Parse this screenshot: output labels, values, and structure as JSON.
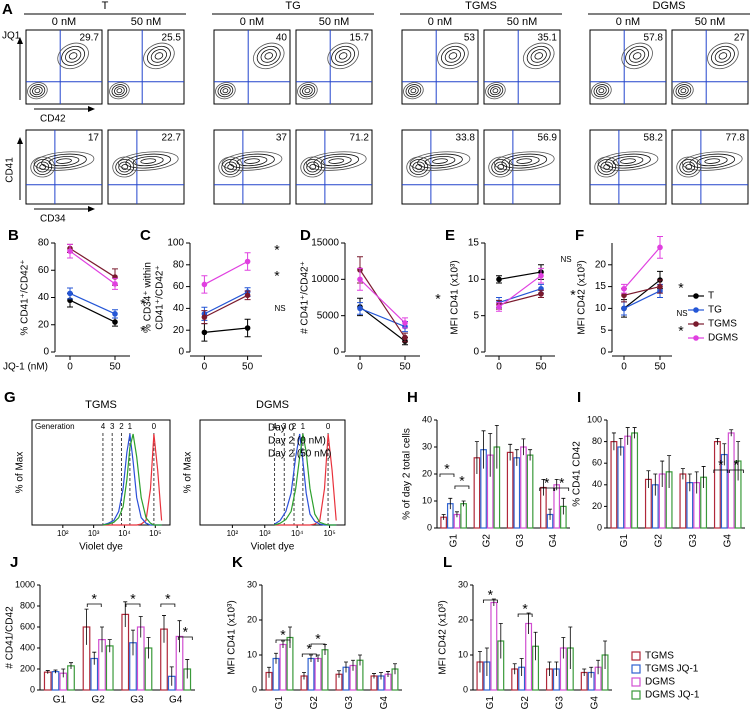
{
  "chart_data": [
    {
      "type": "contour",
      "panel": "A",
      "groups": [
        "T",
        "TG",
        "TGMS",
        "DGMS"
      ],
      "conditions": [
        "0 nM",
        "50 nM"
      ],
      "corner_label": "JQ1",
      "y_label": "CD41",
      "color": "#2244cc",
      "rows": [
        {
          "x_label": "CD42",
          "values": [
            29.7,
            25.5,
            40,
            15.7,
            53,
            35.1,
            57.8,
            27
          ]
        },
        {
          "x_label": "CD34",
          "values": [
            17,
            22.7,
            37,
            71.2,
            33.8,
            56.9,
            58.2,
            77.8
          ]
        }
      ]
    },
    {
      "type": "line",
      "xlabel": "JQ-1 (nM)",
      "categories": [
        "0",
        "50"
      ],
      "series": [
        {
          "name": "T",
          "color": "#000000"
        },
        {
          "name": "TG",
          "color": "#2456d6"
        },
        {
          "name": "TGMS",
          "color": "#7a1a2e"
        },
        {
          "name": "DGMS",
          "color": "#e040e0"
        }
      ],
      "plots": [
        {
          "panel": "B",
          "ylabel": [
            "% CD41⁺/CD42⁺"
          ],
          "ylim": [
            0,
            80
          ],
          "yticks": [
            0,
            20,
            40,
            60,
            80
          ],
          "values": [
            [
              38,
              22
            ],
            [
              43,
              28
            ],
            [
              76,
              55
            ],
            [
              74,
              50
            ]
          ],
          "errors": [
            [
              5,
              3
            ],
            [
              4,
              3
            ],
            [
              3,
              6
            ],
            [
              5,
              4
            ]
          ],
          "annotations": [
            "*",
            "*"
          ]
        },
        {
          "panel": "C",
          "ylabel": [
            "% CD34⁺ within",
            "CD41⁺/CD42⁺"
          ],
          "ylim": [
            0,
            100
          ],
          "yticks": [
            0,
            20,
            40,
            60,
            80,
            100
          ],
          "values": [
            [
              18,
              22
            ],
            [
              35,
              55
            ],
            [
              32,
              52
            ],
            [
              62,
              83
            ]
          ],
          "errors": [
            [
              8,
              8
            ],
            [
              6,
              4
            ],
            [
              6,
              4
            ],
            [
              8,
              8
            ]
          ],
          "annotations": [
            "*",
            "*",
            "NS"
          ]
        },
        {
          "panel": "D",
          "ylabel": [
            "# CD41⁺/CD42⁺"
          ],
          "ylim": [
            0,
            15000
          ],
          "yticks": [
            0,
            5000,
            10000,
            15000
          ],
          "values": [
            [
              6200,
              1500
            ],
            [
              6000,
              3500
            ],
            [
              11300,
              2000
            ],
            [
              10000,
              4000
            ]
          ],
          "errors": [
            [
              1200,
              500
            ],
            [
              800,
              700
            ],
            [
              1800,
              600
            ],
            [
              1500,
              700
            ]
          ],
          "annotations": [
            "*"
          ]
        },
        {
          "panel": "E",
          "ylabel": [
            "MFI CD41 (x10³)"
          ],
          "ylim": [
            0,
            15
          ],
          "yticks": [
            0,
            5,
            10,
            15
          ],
          "values": [
            [
              10,
              11
            ],
            [
              6.8,
              8.7
            ],
            [
              6.5,
              8
            ],
            [
              6.2,
              10.5
            ]
          ],
          "errors": [
            [
              0.5,
              1
            ],
            [
              0.7,
              0.6
            ],
            [
              0.6,
              0.5
            ],
            [
              0.6,
              1
            ]
          ],
          "annotations": [
            "NS",
            "*"
          ]
        },
        {
          "panel": "F",
          "ylabel": [
            "MFI CD42 (x10³)"
          ],
          "ylim": [
            0,
            25
          ],
          "yticks": [
            0,
            5,
            10,
            15,
            20
          ],
          "values": [
            [
              10,
              16.5
            ],
            [
              10,
              14
            ],
            [
              13,
              15
            ],
            [
              14.5,
              24
            ]
          ],
          "errors": [
            [
              2,
              2
            ],
            [
              1.5,
              1.5
            ],
            [
              1.5,
              1.5
            ],
            [
              1,
              2.5
            ]
          ],
          "annotations": [
            "*",
            "NS",
            "*"
          ]
        }
      ]
    },
    {
      "type": "density",
      "panel": "G",
      "titles": [
        "TGMS",
        "DGMS"
      ],
      "ylabel": "% of Max",
      "xlabel": "Violet dye",
      "log_x": true,
      "generation_label": "Generation",
      "generations": [
        "4",
        "3",
        "2",
        "1",
        "0"
      ],
      "generation_x": [
        2000,
        4000,
        8000,
        15000,
        90000
      ],
      "xlim": [
        10,
        300000
      ],
      "xticks": [
        {
          "value": 100,
          "label": "10²"
        },
        {
          "value": 1000,
          "label": "10³"
        },
        {
          "value": 10000,
          "label": "10⁴"
        },
        {
          "value": 100000,
          "label": "10⁵"
        }
      ],
      "ylim": [
        0,
        100
      ],
      "x": [
        2000,
        3000,
        4500,
        6500,
        9000,
        12000,
        15000,
        19000,
        25000,
        35000,
        50000,
        70000,
        90000,
        120000,
        160000
      ],
      "series": [
        {
          "name": "Day 0",
          "color": "#e8323c",
          "values": [
            [
              0,
              0,
              0,
              0,
              0,
              0,
              0,
              0,
              0,
              1,
              5,
              40,
              100,
              60,
              5
            ],
            [
              0,
              0,
              0,
              0,
              0,
              0,
              0,
              0,
              0,
              1,
              5,
              40,
              100,
              60,
              5
            ]
          ]
        },
        {
          "name": "Day 2 (0 nM)",
          "color": "#2b4fd8",
          "values": [
            [
              0,
              2,
              5,
              15,
              40,
              80,
              100,
              70,
              30,
              8,
              2,
              0,
              0,
              0,
              0
            ],
            [
              1,
              5,
              15,
              35,
              75,
              100,
              70,
              35,
              12,
              4,
              1,
              0,
              0,
              0,
              0
            ]
          ]
        },
        {
          "name": "Day 2 (50 nM)",
          "color": "#2ca02c",
          "values": [
            [
              0,
              1,
              3,
              8,
              20,
              50,
              85,
              100,
              75,
              30,
              8,
              2,
              0,
              0,
              0
            ],
            [
              0,
              2,
              6,
              15,
              40,
              75,
              100,
              80,
              40,
              12,
              3,
              1,
              0,
              0,
              0
            ]
          ]
        }
      ]
    },
    {
      "type": "bar",
      "categories": [
        "G1",
        "G2",
        "G3",
        "G4"
      ],
      "series": [
        {
          "name": "TGMS",
          "color": "#b0283a"
        },
        {
          "name": "TGMS JQ-1",
          "color": "#2f62d0"
        },
        {
          "name": "DGMS",
          "color": "#d14fd1"
        },
        {
          "name": "DGMS JQ-1",
          "color": "#3a9a3a"
        }
      ],
      "plots": [
        {
          "panel": "H",
          "ylabel": [
            "% of day 2 total cells"
          ],
          "ylim": [
            0,
            40
          ],
          "yticks": [
            0,
            10,
            20,
            30,
            40
          ],
          "values": [
            [
              4,
              26,
              28,
              15
            ],
            [
              9,
              29,
              26,
              5
            ],
            [
              5,
              27,
              30,
              16
            ],
            [
              9,
              30,
              27,
              8
            ]
          ],
          "errors": [
            [
              1,
              6,
              3,
              3
            ],
            [
              2,
              7,
              3,
              2
            ],
            [
              1,
              8,
              3,
              2
            ],
            [
              1,
              8,
              2,
              3
            ]
          ],
          "annotations": [
            "*",
            "*",
            "*",
            "*"
          ]
        },
        {
          "panel": "I",
          "ylabel": [
            "% CD41 CD42"
          ],
          "ylim": [
            0,
            100
          ],
          "yticks": [
            0,
            20,
            40,
            60,
            80,
            100
          ],
          "values": [
            [
              80,
              45,
              50,
              80
            ],
            [
              75,
              40,
              42,
              68
            ],
            [
              85,
              50,
              42,
              88
            ],
            [
              88,
              52,
              47,
              62
            ]
          ],
          "errors": [
            [
              8,
              8,
              5,
              3
            ],
            [
              8,
              10,
              8,
              10
            ],
            [
              8,
              12,
              10,
              3
            ],
            [
              5,
              15,
              10,
              18
            ]
          ],
          "annotations": [
            "*",
            "*"
          ]
        },
        {
          "panel": "J",
          "ylabel": [
            "# CD41/CD42"
          ],
          "ylim": [
            0,
            1000
          ],
          "yticks": [
            0,
            200,
            400,
            600,
            800,
            1000
          ],
          "values": [
            [
              170,
              600,
              720,
              580
            ],
            [
              175,
              300,
              450,
              130
            ],
            [
              160,
              480,
              600,
              510
            ],
            [
              230,
              420,
              400,
              200
            ]
          ],
          "errors": [
            [
              15,
              170,
              120,
              130
            ],
            [
              15,
              60,
              120,
              90
            ],
            [
              40,
              120,
              100,
              150
            ],
            [
              30,
              60,
              100,
              90
            ]
          ],
          "annotations": [
            "*",
            "*",
            "*",
            "*"
          ]
        },
        {
          "panel": "K",
          "ylabel": [
            "MFI CD41 (x10³)"
          ],
          "ylim": [
            0,
            30
          ],
          "yticks": [
            0,
            10,
            20,
            30
          ],
          "values": [
            [
              5,
              4,
              4.5,
              4
            ],
            [
              9,
              9,
              6.5,
              4
            ],
            [
              13,
              9,
              7,
              4.5
            ],
            [
              15,
              11.5,
              8.5,
              6
            ]
          ],
          "errors": [
            [
              1.5,
              1,
              1,
              0.7
            ],
            [
              1.5,
              1,
              1.5,
              1
            ],
            [
              1,
              1,
              1.5,
              0.8
            ],
            [
              3,
              1.5,
              1.5,
              1.5
            ]
          ],
          "annotations": [
            "*",
            "*",
            "*"
          ]
        },
        {
          "panel": "L",
          "ylabel": [
            "MFI CD42 (x10³)"
          ],
          "ylim": [
            0,
            30
          ],
          "yticks": [
            0,
            10,
            20,
            30
          ],
          "values": [
            [
              8,
              6,
              6,
              5
            ],
            [
              8,
              6.5,
              6,
              5
            ],
            [
              25,
              19,
              12,
              6.5
            ],
            [
              14,
              12.5,
              12,
              10
            ]
          ],
          "errors": [
            [
              3,
              1.5,
              2,
              1
            ],
            [
              4,
              2.5,
              2,
              1.5
            ],
            [
              1,
              3,
              3,
              2
            ],
            [
              5,
              4,
              6,
              4
            ]
          ],
          "annotations": [
            "*",
            "*"
          ]
        }
      ]
    }
  ]
}
